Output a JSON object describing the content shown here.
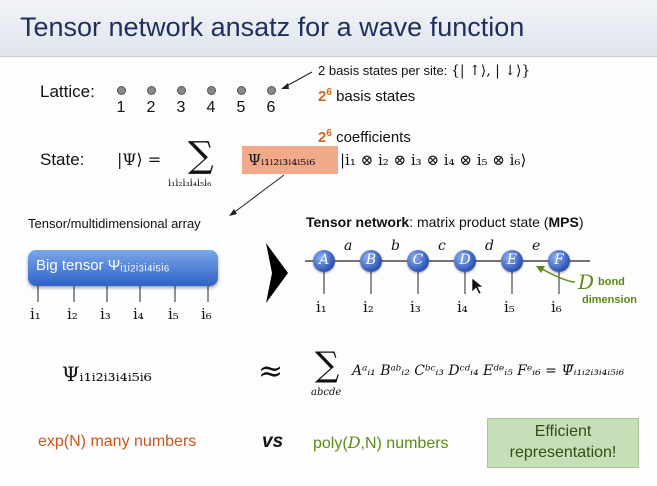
{
  "title": "Tensor network ansatz for a wave function",
  "lattice": {
    "label": "Lattice:",
    "sites": [
      "1",
      "2",
      "3",
      "4",
      "5",
      "6"
    ],
    "basis_note_prefix": "2 basis states per site: ",
    "basis_note_set": "{| ↑⟩, | ↓⟩}",
    "basis_count_base": "2",
    "basis_count_exp": "6",
    "basis_count_text": "basis states"
  },
  "state": {
    "label": "State:",
    "coeff_count_base": "2",
    "coeff_count_exp": "6",
    "coeff_count_text": "coefficients",
    "psi_lhs": "|Ψ⟩ =",
    "sum_symbol": "∑",
    "sum_index": "i₁i₂i₃i₄i₅i₆",
    "coefficient": "Ψᵢ₁ᵢ₂ᵢ₃ᵢ₄ᵢ₅ᵢ₆",
    "ket": "|i₁ ⊗ i₂ ⊗ i₃ ⊗ i₄ ⊗ i₅ ⊗ i₆⟩"
  },
  "tensor_panel": {
    "heading": "Tensor/multidimensional array",
    "big_tensor_label": "Big tensor Ψᵢ₁ᵢ₂ᵢ₃ᵢ₄ᵢ₅ᵢ₆",
    "legs": [
      "i₁",
      "i₂",
      "i₃",
      "i₄",
      "i₅",
      "i₆"
    ]
  },
  "mps_panel": {
    "heading_bold": "Tensor network",
    "heading_rest": ": matrix product state (",
    "heading_abbr": "MPS",
    "heading_close": ")",
    "nodes": [
      "A",
      "B",
      "C",
      "D",
      "E",
      "F"
    ],
    "bonds": [
      "a",
      "b",
      "c",
      "d",
      "e"
    ],
    "legs": [
      "i₁",
      "i₂",
      "i₃",
      "i₄",
      "i₅",
      "i₆"
    ],
    "bond_dim_symbol": "D",
    "bond_dim_word1": "bond",
    "bond_dim_word2": "dimension"
  },
  "equation": {
    "lhs": "Ψᵢ₁ᵢ₂ᵢ₃ᵢ₄ᵢ₅ᵢ₆",
    "approx": "≈",
    "sum_symbol": "∑",
    "sum_index": "abcde",
    "rhs": "Aᵃᵢ₁ Bᵃᵇᵢ₂ Cᵇᶜᵢ₃ Dᶜᵈᵢ₄ Eᵈᵉᵢ₅ Fᵉᵢ₆ = Ψ̃ᵢ₁ᵢ₂ᵢ₃ᵢ₄ᵢ₅ᵢ₆"
  },
  "comparison": {
    "left": "exp(N) many numbers",
    "vs": "vs",
    "right_prefix": "poly(",
    "right_symbol": "D",
    "right_suffix": ",N) numbers",
    "box_line1": "Efficient",
    "box_line2": "representation!"
  },
  "colors": {
    "title": "#1f2f5c",
    "orange": "#d06a20",
    "green": "#5c8a16",
    "node_blue": "#3258b8",
    "highlight": "#f2a98a",
    "box_green": "#c7dfb8"
  }
}
